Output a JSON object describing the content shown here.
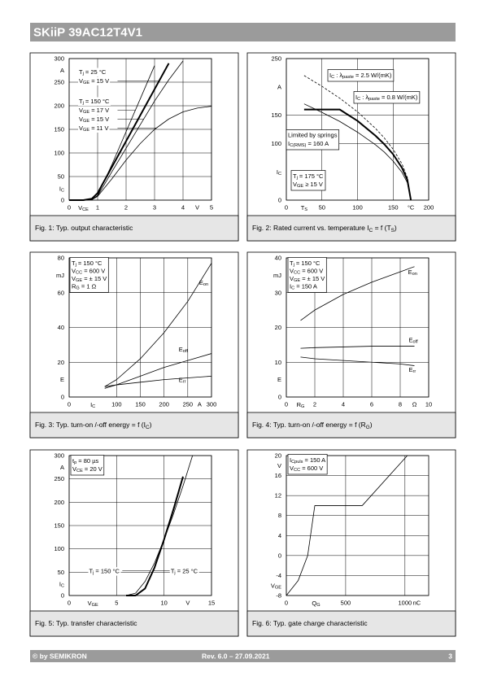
{
  "header": {
    "title": "SKiiP 39AC12T4V1"
  },
  "chart_data": [
    {
      "type": "line",
      "caption": "Fig. 1: Typ. output characteristic",
      "xlabel": [
        "V",
        "CE"
      ],
      "xunit": "V",
      "ylabel": [
        "I",
        "C"
      ],
      "yunit": "A",
      "xlim": [
        0,
        5
      ],
      "ylim": [
        0,
        300
      ],
      "xticks": [
        0,
        1,
        2,
        3,
        4,
        5
      ],
      "yticks": [
        0,
        50,
        100,
        150,
        200,
        250,
        300
      ],
      "grid": true,
      "x": [
        0,
        0.5,
        0.8,
        1,
        1.5,
        2,
        2.5,
        3,
        3.5,
        4,
        4.5,
        5
      ],
      "series": [
        {
          "color": "#000000",
          "width": 2,
          "values": [
            0,
            0,
            3,
            15,
            70,
            125,
            180,
            235,
            290,
            null,
            null,
            null
          ]
        },
        {
          "color": "#000000",
          "width": 0.8,
          "values": [
            0,
            0,
            1,
            10,
            75,
            145,
            215,
            285,
            null,
            null,
            null,
            null
          ]
        },
        {
          "color": "#000000",
          "width": 0.8,
          "values": [
            0,
            0,
            1,
            9,
            60,
            110,
            160,
            210,
            255,
            295,
            null,
            null
          ]
        },
        {
          "color": "#000000",
          "width": 0.8,
          "values": [
            0,
            0,
            1,
            8,
            45,
            85,
            120,
            150,
            172,
            187,
            195,
            199
          ]
        }
      ],
      "notes": [
        [
          [
            "T",
            "j",
            " = 25 °C"
          ],
          [
            "V",
            "GE",
            " = 15 V"
          ]
        ],
        [
          [
            "T",
            "j",
            " = 150 °C"
          ],
          [
            "V",
            "GE",
            " = 17 V"
          ],
          [
            "V",
            "GE",
            " = 15 V"
          ],
          [
            "V",
            "GE",
            " = 11 V"
          ]
        ]
      ]
    },
    {
      "type": "line",
      "caption": [
        "Fig. 2: Rated current vs. temperature I",
        "C",
        " = f (T",
        "S",
        ")"
      ],
      "xlabel": [
        "T",
        "S"
      ],
      "xunit": "°C",
      "ylabel": [
        "I",
        "C"
      ],
      "yunit": "A",
      "xlim": [
        0,
        200
      ],
      "ylim": [
        0,
        250
      ],
      "xticks": [
        0,
        50,
        100,
        150,
        200
      ],
      "yticks": [
        0,
        100,
        150,
        250
      ],
      "grid": true,
      "x": [
        25,
        50,
        75,
        100,
        125,
        137.5,
        150,
        162.5,
        170,
        175
      ],
      "series": [
        {
          "name": [
            "I",
            "C",
            " : λ",
            "paste",
            " = 2.5 W/(mK)"
          ],
          "color": "#000000",
          "width": 0.8,
          "dash": true,
          "values": [
            220,
            201,
            180,
            156,
            127,
            110,
            90,
            64,
            40,
            0
          ]
        },
        {
          "name": [
            "I",
            "C",
            " : λ",
            "paste",
            " = 0.8 W/(mK)"
          ],
          "color": "#000000",
          "width": 0.8,
          "values": [
            170,
            155,
            139,
            120,
            98,
            85,
            69,
            49,
            31,
            0
          ]
        },
        {
          "color": "#000000",
          "width": 2,
          "values": [
            160,
            160,
            160,
            140,
            114,
            99,
            81,
            57,
            36,
            0
          ]
        }
      ],
      "notes": [
        [
          "Limited by springs",
          [
            "I",
            "C(RMS)",
            " = 160 A"
          ]
        ],
        [
          [
            "T",
            "j",
            " = 175 °C"
          ],
          [
            "V",
            "GE",
            " ≥ 15 V"
          ]
        ]
      ]
    },
    {
      "type": "line",
      "caption": [
        "Fig. 3: Typ. turn-on /-off energy = f (I",
        "C",
        ")"
      ],
      "xlabel": [
        "I",
        "C"
      ],
      "xunit": "A",
      "ylabel": "E",
      "yunit": "mJ",
      "xlim": [
        0,
        300
      ],
      "ylim": [
        0,
        80
      ],
      "xticks": [
        0,
        100,
        150,
        200,
        250,
        300
      ],
      "yticks": [
        0,
        20,
        40,
        60,
        80
      ],
      "grid": true,
      "x": [
        75,
        100,
        150,
        200,
        250,
        300
      ],
      "series": [
        {
          "name": [
            "E",
            "on"
          ],
          "color": "#000000",
          "width": 0.8,
          "values": [
            6,
            10,
            22,
            37,
            55,
            77
          ]
        },
        {
          "name": [
            "E",
            "off"
          ],
          "color": "#000000",
          "width": 0.8,
          "values": [
            5,
            7,
            12,
            17,
            21,
            25
          ]
        },
        {
          "name": [
            "E",
            "rr"
          ],
          "color": "#000000",
          "width": 0.8,
          "values": [
            6,
            7,
            8.5,
            10,
            11,
            12
          ]
        }
      ],
      "notes": [
        [
          [
            "T",
            "j",
            " = 150 °C"
          ],
          [
            "V",
            "CC",
            " = 600 V"
          ],
          [
            "V",
            "GE",
            " = ± 15 V"
          ],
          [
            "R",
            "G",
            " = 1 Ω"
          ]
        ]
      ]
    },
    {
      "type": "line",
      "caption": [
        "Fig. 4: Typ. turn-on /-off energy = f (R",
        "G",
        ")"
      ],
      "xlabel": [
        "R",
        "G"
      ],
      "xunit": "Ω",
      "ylabel": "E",
      "yunit": "mJ",
      "xlim": [
        0,
        10
      ],
      "ylim": [
        0,
        40
      ],
      "xticks": [
        0,
        2,
        4,
        6,
        8,
        10
      ],
      "yticks": [
        0,
        10,
        20,
        30,
        40
      ],
      "grid": true,
      "x": [
        1,
        2,
        4,
        6,
        8,
        9
      ],
      "series": [
        {
          "name": [
            "E",
            "on"
          ],
          "color": "#000000",
          "width": 0.8,
          "values": [
            22,
            25,
            29.5,
            33,
            36,
            37.5
          ]
        },
        {
          "name": [
            "E",
            "off"
          ],
          "color": "#000000",
          "width": 0.8,
          "values": [
            14,
            14.2,
            14.4,
            14.6,
            14.6,
            14.6
          ]
        },
        {
          "name": [
            "E",
            "rr"
          ],
          "color": "#000000",
          "width": 0.8,
          "values": [
            11.5,
            11,
            10.5,
            10,
            9.5,
            9
          ]
        }
      ],
      "notes": [
        [
          [
            "T",
            "j",
            " = 150 °C"
          ],
          [
            "V",
            "CC",
            " = 600 V"
          ],
          [
            "V",
            "GE",
            " = ± 15 V"
          ],
          [
            "I",
            "C",
            " = 150 A"
          ]
        ]
      ]
    },
    {
      "type": "line",
      "caption": "Fig. 5: Typ. transfer characteristic",
      "xlabel": [
        "V",
        "GE"
      ],
      "xunit": "V",
      "ylabel": [
        "I",
        "C"
      ],
      "yunit": "A",
      "xlim": [
        0,
        15
      ],
      "ylim": [
        0,
        300
      ],
      "xticks": [
        0,
        5,
        10,
        15
      ],
      "yticks": [
        0,
        50,
        100,
        150,
        200,
        250,
        300
      ],
      "grid": true,
      "x": [
        6,
        7,
        8,
        9,
        10,
        11,
        12,
        13
      ],
      "series": [
        {
          "name": [
            "T",
            "j",
            " = 150 °C"
          ],
          "color": "#000000",
          "width": 0.8,
          "values": [
            0,
            5,
            30,
            70,
            120,
            175,
            235,
            300
          ]
        },
        {
          "name": [
            "T",
            "j",
            " = 25 °C"
          ],
          "color": "#000000",
          "width": 2,
          "values": [
            0,
            0,
            15,
            60,
            120,
            185,
            255,
            null
          ]
        }
      ],
      "notes": [
        [
          [
            "t",
            "p",
            " = 80 µs"
          ],
          [
            "V",
            "CE",
            " = 20 V"
          ]
        ]
      ]
    },
    {
      "type": "line",
      "caption": "Fig. 6: Typ. gate charge characteristic",
      "xlabel": [
        "Q",
        "G"
      ],
      "xunit": "nC",
      "ylabel": [
        "V",
        "GE"
      ],
      "yunit": "V",
      "xlim": [
        0,
        1200
      ],
      "ylim": [
        -8,
        20
      ],
      "xticks": [
        0,
        500,
        1000
      ],
      "yticks": [
        -8,
        -4,
        0,
        4,
        8,
        12,
        16,
        20
      ],
      "grid": true,
      "x": [
        0,
        100,
        180,
        240,
        640,
        1020
      ],
      "series": [
        {
          "color": "#000000",
          "width": 0.8,
          "values": [
            -8,
            -5,
            0,
            10,
            10,
            20
          ]
        }
      ],
      "notes": [
        [
          [
            "I",
            "Cpuls",
            " = 150 A"
          ],
          [
            "V",
            "CC",
            " = 600 V"
          ]
        ]
      ]
    }
  ],
  "footer": {
    "left": "© by SEMIKRON",
    "center": "Rev. 6.0 – 27.09.2021",
    "page": "3"
  }
}
